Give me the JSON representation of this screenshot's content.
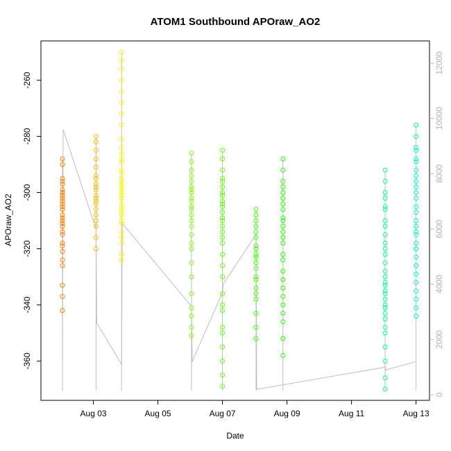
{
  "chart_data": {
    "type": "scatter",
    "title": "ATOM1 Southbound APOraw_AO2",
    "xlabel": "Date",
    "ylabel": "APOraw_AO2",
    "xlim": [
      "2024-08-01T09:00",
      "2024-08-13T10:00"
    ],
    "ylim": [
      -374,
      -246
    ],
    "y2lim": [
      -200,
      12800
    ],
    "x_ticks": [
      {
        "label": "Aug 03",
        "t": "2024-08-03T00:00"
      },
      {
        "label": "Aug 05",
        "t": "2024-08-05T00:00"
      },
      {
        "label": "Aug 07",
        "t": "2024-08-07T00:00"
      },
      {
        "label": "Aug 09",
        "t": "2024-08-09T00:00"
      },
      {
        "label": "Aug 11",
        "t": "2024-08-11T00:00"
      },
      {
        "label": "Aug 13",
        "t": "2024-08-13T00:00"
      }
    ],
    "y_ticks": [
      {
        "label": "-260",
        "v": -260
      },
      {
        "label": "-280",
        "v": -280
      },
      {
        "label": "-300",
        "v": -300
      },
      {
        "label": "-320",
        "v": -320
      },
      {
        "label": "-340",
        "v": -340
      },
      {
        "label": "-360",
        "v": -360
      }
    ],
    "y2_ticks": [
      {
        "label": "0",
        "v": 0
      },
      {
        "label": "2000",
        "v": 2000
      },
      {
        "label": "4000",
        "v": 4000
      },
      {
        "label": "6000",
        "v": 6000
      },
      {
        "label": "8000",
        "v": 8000
      },
      {
        "label": "10000",
        "v": 10000
      },
      {
        "label": "12000",
        "v": 12000
      }
    ],
    "clusters": [
      {
        "t": "2024-08-02T01:00",
        "color": "#FF8000",
        "y": [
          -312,
          -306,
          -301,
          -297,
          -304,
          -309,
          -315,
          -319,
          -299,
          -295,
          -303,
          -308,
          -311,
          -306,
          -302,
          -314,
          -318,
          -321,
          -324,
          -300,
          -296,
          -290,
          -288,
          -326,
          -333,
          -337,
          -342,
          -305,
          -310,
          -300
        ]
      },
      {
        "t": "2024-08-03T02:00",
        "color": "#FFBF00",
        "y": [
          -298,
          -303,
          -294,
          -308,
          -312,
          -301,
          -297,
          -291,
          -288,
          -285,
          -282,
          -280,
          -316,
          -320,
          -306,
          -299,
          -302,
          -295,
          -310,
          -304
        ]
      },
      {
        "t": "2024-08-03T21:00",
        "color": "#FFFF00",
        "y": [
          -300,
          -305,
          -311,
          -296,
          -292,
          -289,
          -308,
          -314,
          -318,
          -302,
          -299,
          -295,
          -286,
          -281,
          -276,
          -272,
          -268,
          -264,
          -260,
          -256,
          -253,
          -250,
          -322,
          -324,
          -307,
          -304,
          -298,
          -293,
          -310,
          -301,
          -297,
          -288,
          -284,
          -316,
          -306
        ]
      },
      {
        "t": "2024-08-06T01:00",
        "color": "#80FF00",
        "y": [
          -300,
          -305,
          -296,
          -292,
          -289,
          -286,
          -310,
          -315,
          -320,
          -325,
          -330,
          -336,
          -341,
          -344,
          -348,
          -351,
          -303,
          -298,
          -308,
          -312,
          -302,
          -294,
          -318,
          -306,
          -299
        ]
      },
      {
        "t": "2024-08-07T00:00",
        "color": "#60FF00",
        "y": [
          -300,
          -305,
          -296,
          -292,
          -288,
          -285,
          -310,
          -314,
          -318,
          -322,
          -330,
          -336,
          -342,
          -348,
          -355,
          -360,
          -365,
          -369,
          -303,
          -298,
          -307,
          -312,
          -301,
          -295,
          -316,
          -326,
          -340,
          -350,
          -309,
          -304
        ]
      },
      {
        "t": "2024-08-08T01:00",
        "color": "#40FF00",
        "y": [
          -320,
          -325,
          -316,
          -312,
          -308,
          -330,
          -334,
          -338,
          -343,
          -348,
          -352,
          -306,
          -319,
          -323,
          -327,
          -314,
          -310,
          -331,
          -336,
          -322
        ]
      },
      {
        "t": "2024-08-08T21:00",
        "color": "#20FF00",
        "y": [
          -300,
          -306,
          -312,
          -296,
          -292,
          -288,
          -318,
          -322,
          -328,
          -334,
          -340,
          -346,
          -352,
          -358,
          -304,
          -309,
          -314,
          -298,
          -302,
          -324,
          -331,
          -337,
          -343,
          -310,
          -316
        ]
      },
      {
        "t": "2024-08-12T01:00",
        "color": "#00FFA0",
        "y": [
          -300,
          -305,
          -310,
          -315,
          -320,
          -325,
          -330,
          -335,
          -340,
          -345,
          -350,
          -355,
          -360,
          -366,
          -370,
          -296,
          -292,
          -322,
          -328,
          -333,
          -338,
          -343,
          -348,
          -318,
          -312,
          -306,
          -302,
          -332,
          -336,
          -341
        ]
      },
      {
        "t": "2024-08-13T00:00",
        "color": "#00FFC0",
        "y": [
          -300,
          -305,
          -310,
          -315,
          -320,
          -326,
          -332,
          -338,
          -344,
          -296,
          -292,
          -288,
          -284,
          -280,
          -276,
          -302,
          -307,
          -312,
          -318,
          -323,
          -329,
          -335,
          -341,
          -298,
          -294,
          -289,
          -285,
          -314,
          -320,
          -326
        ]
      }
    ],
    "line_series": {
      "name": "",
      "color": "#BEBEBE",
      "axis": "right",
      "points": [
        [
          "2024-08-02T01:00",
          800
        ],
        [
          "2024-08-02T01:30",
          9600
        ],
        [
          "2024-08-03T02:00",
          6000
        ],
        [
          "2024-08-03T02:30",
          2600
        ],
        [
          "2024-08-03T21:00",
          1100
        ],
        [
          "2024-08-03T21:30",
          6200
        ],
        [
          "2024-08-06T01:00",
          3200
        ],
        [
          "2024-08-06T01:30",
          1200
        ],
        [
          "2024-08-07T00:00",
          3700
        ],
        [
          "2024-08-07T00:30",
          4000
        ],
        [
          "2024-08-08T01:00",
          5800
        ],
        [
          "2024-08-08T01:30",
          200
        ],
        [
          "2024-08-12T01:00",
          1000
        ],
        [
          "2024-08-12T01:30",
          900
        ],
        [
          "2024-08-13T00:00",
          1200
        ]
      ]
    }
  }
}
